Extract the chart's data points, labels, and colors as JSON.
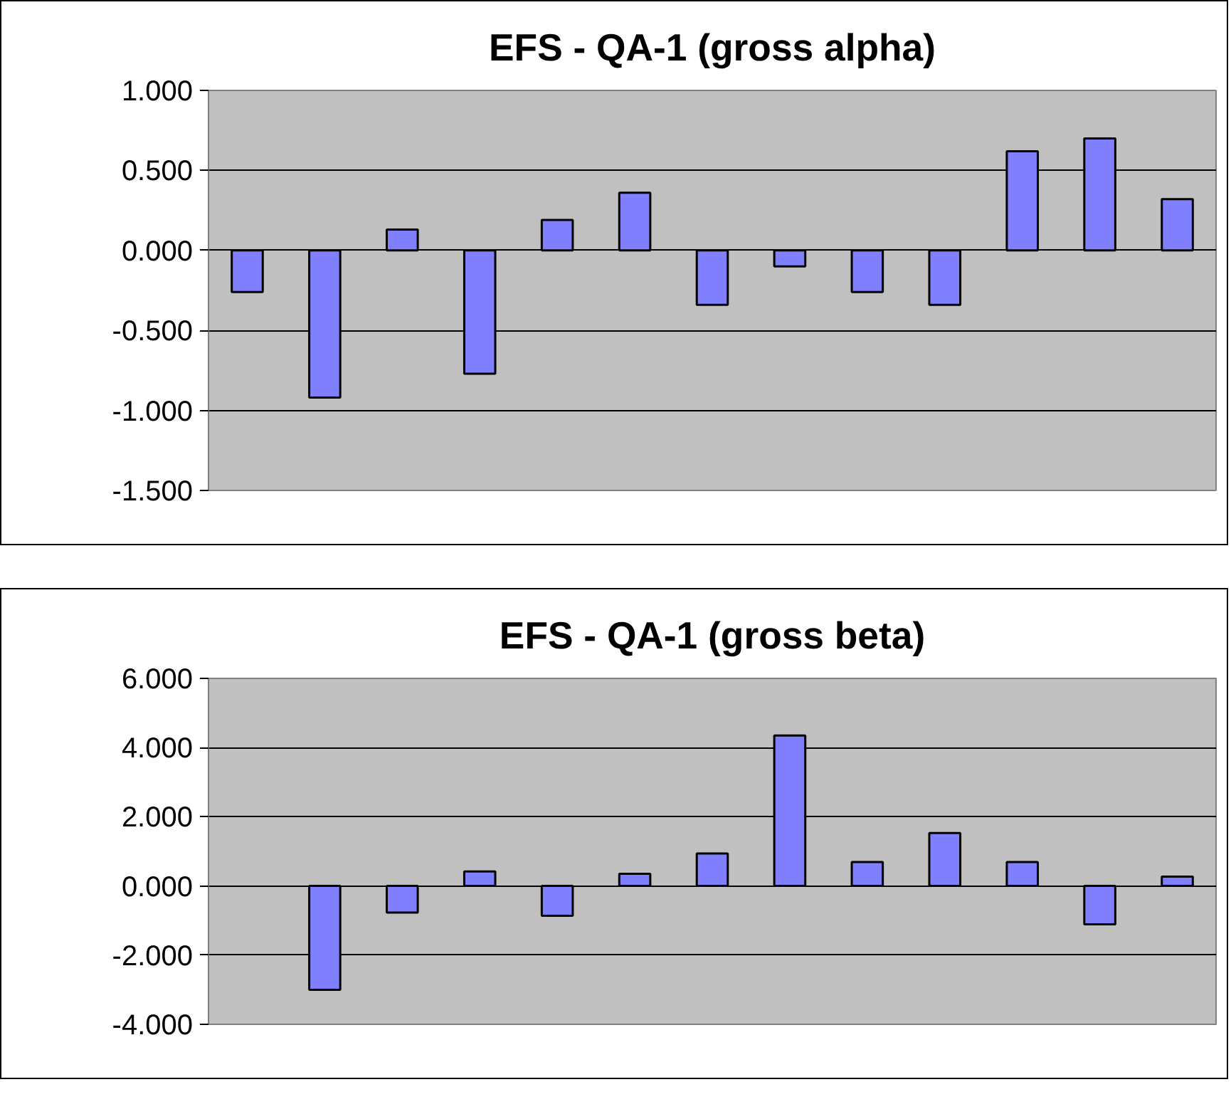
{
  "chart_data": [
    {
      "type": "bar",
      "title": "EFS - QA-1 (gross alpha)",
      "categories": [
        null,
        null,
        null,
        null,
        null,
        null,
        null,
        null,
        null,
        null,
        null,
        null,
        null
      ],
      "values": [
        -0.26,
        -0.92,
        0.13,
        -0.77,
        0.19,
        0.36,
        -0.34,
        -0.1,
        -0.26,
        -0.34,
        0.62,
        0.7,
        0.32
      ],
      "color": "#8080ff",
      "ylim": [
        -1.5,
        1.0
      ],
      "yticks": [
        {
          "value": -1.5,
          "label": "-1.500"
        },
        {
          "value": -1.0,
          "label": "-1.000"
        },
        {
          "value": -0.5,
          "label": "-0.500"
        },
        {
          "value": 0,
          "label": "0.000"
        },
        {
          "value": 0.5,
          "label": "0.500"
        },
        {
          "value": 1.0,
          "label": "1.000"
        }
      ],
      "grid": "y",
      "tick_labels": "y"
    },
    {
      "type": "bar",
      "title": "EFS - QA-1 (gross beta)",
      "categories": [
        null,
        null,
        null,
        null,
        null,
        null,
        null,
        null,
        null,
        null,
        null,
        null,
        null
      ],
      "values": [
        null,
        -3.0,
        -0.77,
        0.42,
        -0.86,
        0.35,
        0.94,
        4.35,
        0.69,
        1.53,
        0.69,
        -1.11,
        0.27
      ],
      "color": "#8080ff",
      "ylim": [
        -4.0,
        6.0
      ],
      "yticks": [
        {
          "value": -4,
          "label": "-4.000"
        },
        {
          "value": -2,
          "label": "-2.000"
        },
        {
          "value": 0,
          "label": "0.000"
        },
        {
          "value": 2,
          "label": "2.000"
        },
        {
          "value": 4,
          "label": "4.000"
        },
        {
          "value": 6,
          "label": "6.000"
        }
      ],
      "grid": "y",
      "tick_labels": "y"
    }
  ]
}
